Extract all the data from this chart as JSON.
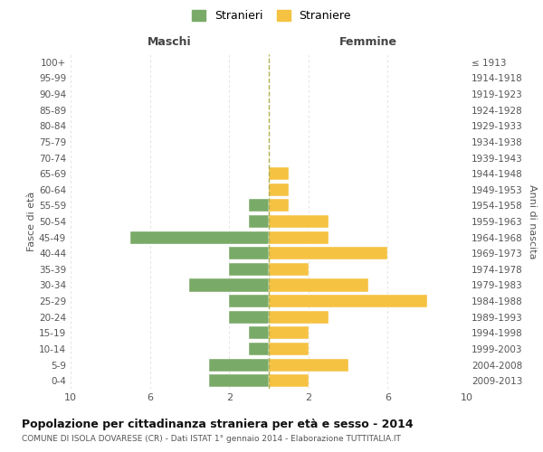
{
  "age_groups": [
    "100+",
    "95-99",
    "90-94",
    "85-89",
    "80-84",
    "75-79",
    "70-74",
    "65-69",
    "60-64",
    "55-59",
    "50-54",
    "45-49",
    "40-44",
    "35-39",
    "30-34",
    "25-29",
    "20-24",
    "15-19",
    "10-14",
    "5-9",
    "0-4"
  ],
  "birth_years": [
    "≤ 1913",
    "1914-1918",
    "1919-1923",
    "1924-1928",
    "1929-1933",
    "1934-1938",
    "1939-1943",
    "1944-1948",
    "1949-1953",
    "1954-1958",
    "1959-1963",
    "1964-1968",
    "1969-1973",
    "1974-1978",
    "1979-1983",
    "1984-1988",
    "1989-1993",
    "1994-1998",
    "1999-2003",
    "2004-2008",
    "2009-2013"
  ],
  "males": [
    0,
    0,
    0,
    0,
    0,
    0,
    0,
    0,
    0,
    1,
    1,
    7,
    2,
    2,
    4,
    2,
    2,
    1,
    1,
    3,
    3
  ],
  "females": [
    0,
    0,
    0,
    0,
    0,
    0,
    0,
    1,
    1,
    1,
    3,
    3,
    6,
    2,
    5,
    8,
    3,
    2,
    2,
    4,
    2
  ],
  "male_color": "#7aaa68",
  "female_color": "#f5c242",
  "center_line_color": "#b0b050",
  "background_color": "#ffffff",
  "grid_color": "#d8d8d8",
  "title": "Popolazione per cittadinanza straniera per età e sesso - 2014",
  "subtitle": "COMUNE DI ISOLA DOVARESE (CR) - Dati ISTAT 1° gennaio 2014 - Elaborazione TUTTITALIA.IT",
  "xlabel_left": "Maschi",
  "xlabel_right": "Femmine",
  "ylabel_left": "Fasce di età",
  "ylabel_right": "Anni di nascita",
  "legend_male": "Stranieri",
  "legend_female": "Straniere",
  "xlim": 10,
  "xtick_positions": [
    -10,
    -6,
    -2,
    2,
    6,
    10
  ],
  "xtick_labels": [
    "10",
    "6",
    "2",
    "2",
    "6",
    "10"
  ]
}
